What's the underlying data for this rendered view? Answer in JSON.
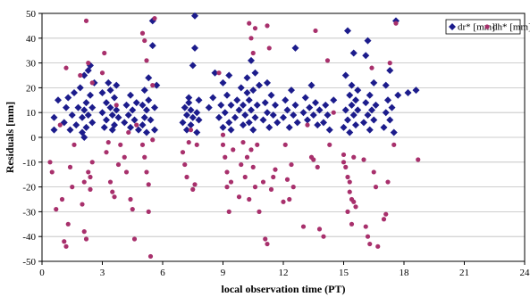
{
  "chart_data": {
    "type": "scatter",
    "xlabel": "local observation time (PT)",
    "ylabel": "Residuals [mm]",
    "xlim": [
      0,
      24
    ],
    "ylim": [
      -50,
      50
    ],
    "xticks": [
      0,
      3,
      6,
      9,
      12,
      15,
      18,
      21,
      24
    ],
    "yticks": [
      -50,
      -40,
      -30,
      -20,
      -10,
      0,
      10,
      20,
      30,
      40,
      50
    ],
    "xtick_labels": [
      "0",
      "3",
      "6",
      "9",
      "12",
      "15",
      "18",
      "21",
      "24"
    ],
    "ytick_labels": [
      "-50",
      "-40",
      "-30",
      "-20",
      "-10",
      "0",
      "10",
      "20",
      "30",
      "40",
      "50"
    ],
    "grid": "horizontal",
    "legend_position": "top-right",
    "series": [
      {
        "name": "dr* [mm]",
        "marker": "diamond",
        "color": "#1c1c8c",
        "points": [
          [
            0.6,
            3
          ],
          [
            0.6,
            8
          ],
          [
            0.8,
            15
          ],
          [
            1.1,
            6
          ],
          [
            1.2,
            12
          ],
          [
            1.3,
            16
          ],
          [
            1.4,
            3
          ],
          [
            1.5,
            9
          ],
          [
            1.6,
            18
          ],
          [
            1.7,
            5
          ],
          [
            1.8,
            12
          ],
          [
            1.9,
            20
          ],
          [
            2.0,
            2
          ],
          [
            2.0,
            8
          ],
          [
            2.1,
            11
          ],
          [
            2.1,
            25
          ],
          [
            2.2,
            14
          ],
          [
            2.2,
            4
          ],
          [
            2.3,
            9
          ],
          [
            2.3,
            27
          ],
          [
            2.4,
            17
          ],
          [
            2.4,
            29
          ],
          [
            2.5,
            12
          ],
          [
            2.5,
            6
          ],
          [
            2.1,
            0
          ],
          [
            2.6,
            22
          ],
          [
            3.0,
            10
          ],
          [
            3.0,
            18
          ],
          [
            3.1,
            4
          ],
          [
            3.2,
            7
          ],
          [
            3.2,
            14
          ],
          [
            3.3,
            22
          ],
          [
            3.4,
            12
          ],
          [
            3.4,
            19
          ],
          [
            3.5,
            3
          ],
          [
            3.5,
            9
          ],
          [
            3.6,
            16
          ],
          [
            3.6,
            5
          ],
          [
            3.7,
            11
          ],
          [
            3.7,
            21
          ],
          [
            3.8,
            8
          ],
          [
            4.1,
            6
          ],
          [
            4.2,
            13
          ],
          [
            4.3,
            9
          ],
          [
            4.4,
            4
          ],
          [
            4.4,
            17
          ],
          [
            4.5,
            11
          ],
          [
            4.6,
            7
          ],
          [
            4.7,
            14
          ],
          [
            4.8,
            3
          ],
          [
            5.0,
            5
          ],
          [
            5.0,
            13
          ],
          [
            5.1,
            8
          ],
          [
            5.1,
            19
          ],
          [
            5.2,
            11
          ],
          [
            5.2,
            2
          ],
          [
            5.3,
            15
          ],
          [
            5.3,
            24
          ],
          [
            5.4,
            7
          ],
          [
            5.5,
            37
          ],
          [
            5.5,
            47
          ],
          [
            5.6,
            12
          ],
          [
            5.6,
            3
          ],
          [
            5.7,
            21
          ],
          [
            7.0,
            6
          ],
          [
            7.1,
            12
          ],
          [
            7.2,
            3
          ],
          [
            7.2,
            9
          ],
          [
            7.3,
            14
          ],
          [
            7.3,
            16
          ],
          [
            7.4,
            5
          ],
          [
            7.4,
            11
          ],
          [
            7.5,
            8
          ],
          [
            7.5,
            29
          ],
          [
            7.6,
            36
          ],
          [
            7.6,
            49
          ],
          [
            7.7,
            10
          ],
          [
            7.7,
            2
          ],
          [
            7.8,
            15
          ],
          [
            7.8,
            7
          ],
          [
            8.3,
            12
          ],
          [
            8.5,
            16
          ],
          [
            8.6,
            26
          ],
          [
            8.8,
            8
          ],
          [
            8.9,
            13
          ],
          [
            9.0,
            22
          ],
          [
            9.0,
            4
          ],
          [
            9.1,
            10
          ],
          [
            9.2,
            17
          ],
          [
            9.3,
            6
          ],
          [
            9.3,
            25
          ],
          [
            9.4,
            13
          ],
          [
            9.4,
            3
          ],
          [
            9.6,
            8
          ],
          [
            9.7,
            15
          ],
          [
            9.8,
            11
          ],
          [
            9.9,
            20
          ],
          [
            10.0,
            5
          ],
          [
            10.0,
            13
          ],
          [
            10.1,
            9
          ],
          [
            10.2,
            18
          ],
          [
            10.2,
            24
          ],
          [
            10.3,
            6
          ],
          [
            10.3,
            15
          ],
          [
            10.4,
            11
          ],
          [
            10.4,
            31
          ],
          [
            10.5,
            3
          ],
          [
            10.5,
            19
          ],
          [
            10.6,
            26
          ],
          [
            10.6,
            8
          ],
          [
            10.7,
            13
          ],
          [
            10.8,
            21
          ],
          [
            11.0,
            7
          ],
          [
            11.1,
            14
          ],
          [
            11.2,
            10
          ],
          [
            11.2,
            22
          ],
          [
            11.3,
            4
          ],
          [
            11.4,
            17
          ],
          [
            11.5,
            9
          ],
          [
            11.6,
            13
          ],
          [
            11.7,
            6
          ],
          [
            12.0,
            8
          ],
          [
            12.1,
            15
          ],
          [
            12.2,
            11
          ],
          [
            12.3,
            4
          ],
          [
            12.4,
            19
          ],
          [
            12.5,
            9
          ],
          [
            12.6,
            13
          ],
          [
            12.6,
            36
          ],
          [
            12.7,
            6
          ],
          [
            13.0,
            10
          ],
          [
            13.1,
            16
          ],
          [
            13.2,
            7
          ],
          [
            13.3,
            12
          ],
          [
            13.4,
            21
          ],
          [
            13.5,
            9
          ],
          [
            13.6,
            14
          ],
          [
            13.7,
            5
          ],
          [
            13.8,
            11
          ],
          [
            14.0,
            6
          ],
          [
            14.1,
            13
          ],
          [
            14.2,
            9
          ],
          [
            14.3,
            3
          ],
          [
            14.5,
            15
          ],
          [
            15.0,
            4
          ],
          [
            15.1,
            11
          ],
          [
            15.1,
            25
          ],
          [
            15.2,
            7
          ],
          [
            15.2,
            43
          ],
          [
            15.3,
            17
          ],
          [
            15.3,
            2
          ],
          [
            15.4,
            13
          ],
          [
            15.4,
            21
          ],
          [
            15.5,
            9
          ],
          [
            15.5,
            34
          ],
          [
            15.6,
            15
          ],
          [
            15.6,
            5
          ],
          [
            15.7,
            19
          ],
          [
            15.7,
            11
          ],
          [
            16.0,
            6
          ],
          [
            16.1,
            14
          ],
          [
            16.1,
            33
          ],
          [
            16.2,
            9
          ],
          [
            16.2,
            39
          ],
          [
            16.3,
            17
          ],
          [
            16.3,
            3
          ],
          [
            16.4,
            11
          ],
          [
            16.5,
            22
          ],
          [
            16.5,
            7
          ],
          [
            16.6,
            13
          ],
          [
            17.0,
            4
          ],
          [
            17.1,
            10
          ],
          [
            17.1,
            21
          ],
          [
            17.2,
            15
          ],
          [
            17.3,
            7
          ],
          [
            17.3,
            27
          ],
          [
            17.4,
            12
          ],
          [
            17.5,
            2
          ],
          [
            17.6,
            47
          ],
          [
            17.7,
            17
          ],
          [
            18.2,
            18
          ],
          [
            18.6,
            19
          ]
        ]
      },
      {
        "name": "dh* [mm]",
        "marker": "circle",
        "color": "#a8306c",
        "points": [
          [
            0.4,
            -10
          ],
          [
            0.5,
            -14
          ],
          [
            0.7,
            -29
          ],
          [
            0.9,
            5
          ],
          [
            1.0,
            -25
          ],
          [
            1.1,
            -42
          ],
          [
            1.2,
            -44
          ],
          [
            1.2,
            28
          ],
          [
            1.3,
            -35
          ],
          [
            1.4,
            -12
          ],
          [
            1.5,
            -20
          ],
          [
            1.6,
            -3
          ],
          [
            1.9,
            25
          ],
          [
            2.0,
            -27
          ],
          [
            2.1,
            -18
          ],
          [
            2.1,
            -38
          ],
          [
            2.2,
            -41
          ],
          [
            2.2,
            47
          ],
          [
            2.3,
            -14
          ],
          [
            2.3,
            30
          ],
          [
            2.4,
            -16
          ],
          [
            2.4,
            -21
          ],
          [
            2.5,
            -10
          ],
          [
            2.5,
            22
          ],
          [
            3.0,
            26
          ],
          [
            3.1,
            34
          ],
          [
            3.2,
            -6
          ],
          [
            3.3,
            -2
          ],
          [
            3.4,
            -18
          ],
          [
            3.5,
            -22
          ],
          [
            3.6,
            -24
          ],
          [
            3.7,
            13
          ],
          [
            3.8,
            -11
          ],
          [
            3.9,
            -3
          ],
          [
            4.1,
            -8
          ],
          [
            4.2,
            -14
          ],
          [
            4.3,
            2
          ],
          [
            4.4,
            -25
          ],
          [
            4.5,
            -29
          ],
          [
            4.6,
            -41
          ],
          [
            4.7,
            5
          ],
          [
            5.0,
            -3
          ],
          [
            5.0,
            42
          ],
          [
            5.1,
            39
          ],
          [
            5.1,
            -8
          ],
          [
            5.2,
            -14
          ],
          [
            5.2,
            31
          ],
          [
            5.3,
            -19
          ],
          [
            5.3,
            -30
          ],
          [
            5.4,
            -48
          ],
          [
            5.5,
            -1
          ],
          [
            5.5,
            21
          ],
          [
            5.6,
            48
          ],
          [
            7.0,
            -6
          ],
          [
            7.1,
            -11
          ],
          [
            7.2,
            -16
          ],
          [
            7.3,
            -2
          ],
          [
            7.4,
            3
          ],
          [
            7.5,
            -21
          ],
          [
            7.6,
            -19
          ],
          [
            7.7,
            -3
          ],
          [
            8.8,
            26
          ],
          [
            9.0,
            -3
          ],
          [
            9.0,
            1
          ],
          [
            9.1,
            -8
          ],
          [
            9.2,
            -14
          ],
          [
            9.2,
            -20
          ],
          [
            9.3,
            -30
          ],
          [
            9.4,
            -18
          ],
          [
            9.5,
            -5
          ],
          [
            9.8,
            -24
          ],
          [
            9.9,
            -11
          ],
          [
            10.0,
            -2
          ],
          [
            10.1,
            -16
          ],
          [
            10.2,
            -8
          ],
          [
            10.3,
            46
          ],
          [
            10.3,
            -25
          ],
          [
            10.4,
            40
          ],
          [
            10.4,
            -5
          ],
          [
            10.5,
            34
          ],
          [
            10.5,
            -12
          ],
          [
            10.6,
            -20
          ],
          [
            10.6,
            44
          ],
          [
            10.7,
            -3
          ],
          [
            10.8,
            -30
          ],
          [
            11.0,
            -18
          ],
          [
            11.1,
            -41
          ],
          [
            11.2,
            -43
          ],
          [
            11.2,
            45
          ],
          [
            11.3,
            36
          ],
          [
            11.4,
            -21
          ],
          [
            11.5,
            -16
          ],
          [
            11.6,
            -13
          ],
          [
            12.0,
            -26
          ],
          [
            12.1,
            -3
          ],
          [
            12.2,
            -17
          ],
          [
            12.3,
            -25
          ],
          [
            12.4,
            -11
          ],
          [
            12.5,
            -20
          ],
          [
            13.0,
            -36
          ],
          [
            13.2,
            5
          ],
          [
            13.4,
            -8
          ],
          [
            13.5,
            -9
          ],
          [
            13.6,
            43
          ],
          [
            13.7,
            -12
          ],
          [
            13.8,
            -37
          ],
          [
            14.0,
            -40
          ],
          [
            14.2,
            31
          ],
          [
            14.3,
            -3
          ],
          [
            14.5,
            10
          ],
          [
            15.0,
            -7
          ],
          [
            15.0,
            -10
          ],
          [
            15.1,
            -12
          ],
          [
            15.2,
            -16
          ],
          [
            15.2,
            -30
          ],
          [
            15.3,
            -18
          ],
          [
            15.3,
            -22
          ],
          [
            15.4,
            -25
          ],
          [
            15.4,
            -35
          ],
          [
            15.5,
            -26
          ],
          [
            15.5,
            -8
          ],
          [
            15.6,
            -28
          ],
          [
            16.0,
            -9
          ],
          [
            16.1,
            -36
          ],
          [
            16.2,
            -40
          ],
          [
            16.3,
            -43
          ],
          [
            16.4,
            28
          ],
          [
            16.5,
            -14
          ],
          [
            16.6,
            -20
          ],
          [
            16.7,
            -44
          ],
          [
            17.0,
            -33
          ],
          [
            17.1,
            -31
          ],
          [
            17.2,
            -18
          ],
          [
            17.3,
            30
          ],
          [
            17.5,
            -3
          ],
          [
            17.6,
            46
          ],
          [
            18.7,
            -9
          ]
        ]
      }
    ]
  }
}
